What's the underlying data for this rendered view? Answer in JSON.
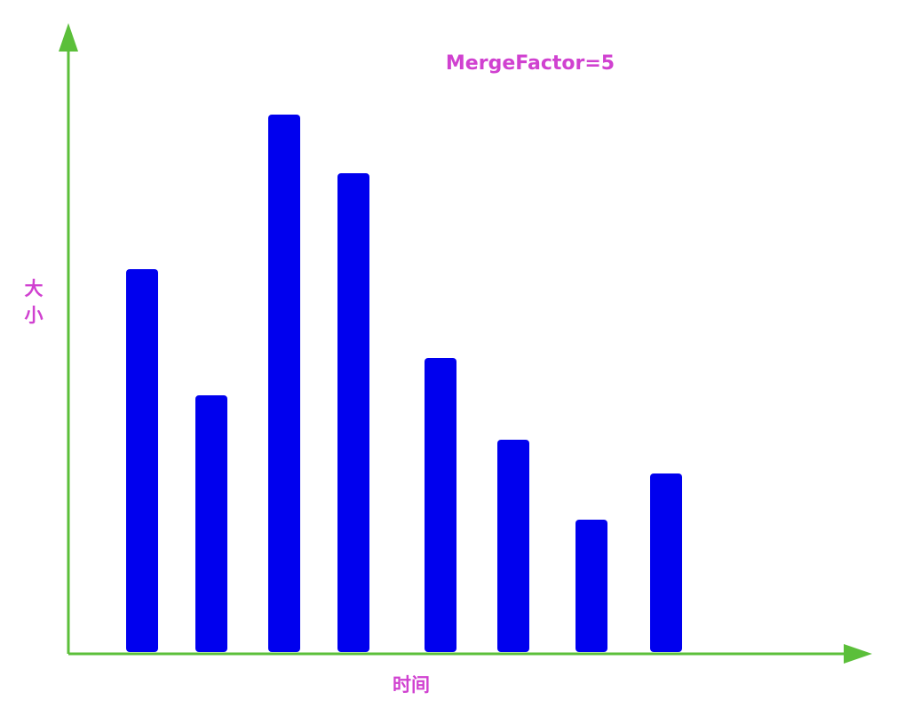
{
  "chart_data": {
    "type": "bar",
    "title": "MergeFactor=5",
    "xlabel": "时间",
    "ylabel": "大小",
    "categories": [
      "",
      "",
      "",
      "",
      "",
      "",
      "",
      ""
    ],
    "values": [
      431,
      289,
      605,
      539,
      331,
      239,
      149,
      201
    ],
    "ylim": [
      0,
      700
    ],
    "grid": false,
    "legend": "none"
  },
  "colors": {
    "bar": "#0000ee",
    "axis": "#5bbf3a",
    "label": "#d041d0"
  }
}
